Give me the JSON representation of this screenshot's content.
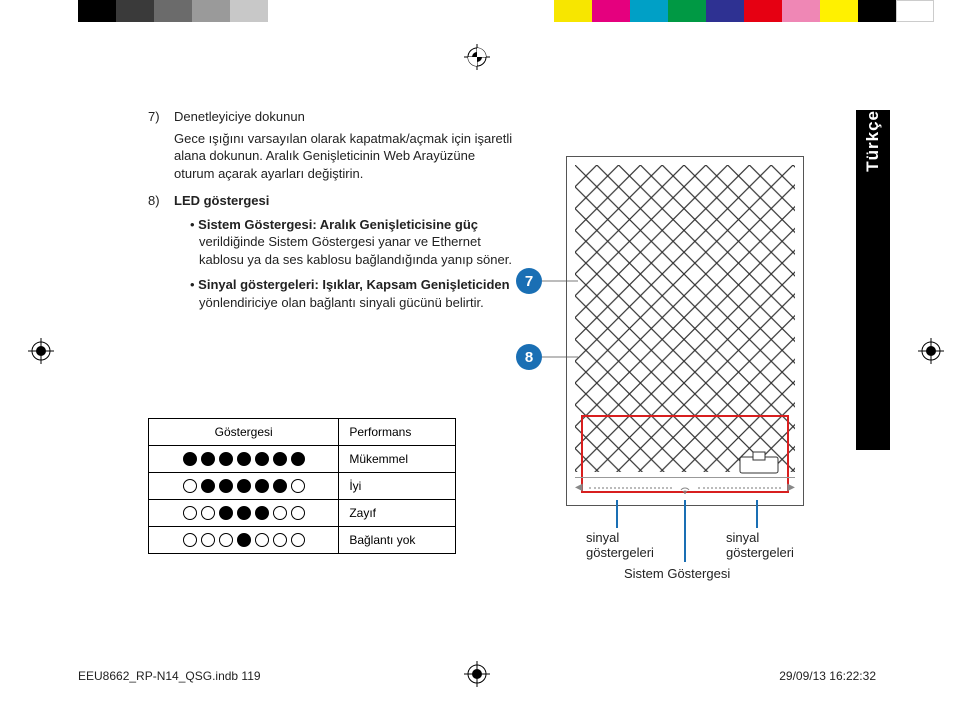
{
  "colorbar": {
    "left": [
      "#000000",
      "#3a3a3a",
      "#6b6b6b",
      "#9a9a9a",
      "#c8c8c8"
    ],
    "right": [
      "#f7e600",
      "#e5007e",
      "#00a0c6",
      "#009944",
      "#2e3192",
      "#e60012",
      "#ef87b5",
      "#fff100",
      "#000000",
      "#ffffff"
    ]
  },
  "language_tab": "Türkçe",
  "items": {
    "seven": {
      "num": "7)",
      "title": "Denetleyiciye dokunun",
      "desc": "Gece ışığını varsayılan olarak kapatmak/açmak için işaretli alana dokunun. Aralık Genişleticinin Web Arayüzüne oturum açarak ayarları değiştirin."
    },
    "eight": {
      "num": "8)",
      "title": "LED göstergesi",
      "b1_bold": "Sistem Göstergesi: Aralık Genişleticisine güç",
      "b1_rest": " verildiğinde Sistem Göstergesi yanar ve Ethernet kablosu ya da ses kablosu bağlandığında yanıp söner.",
      "b2_bold": "Sinyal göstergeleri: Işıklar, Kapsam Genişleticiden",
      "b2_rest": " yönlendiriciye olan bağlantı sinyali gücünü belirtir."
    }
  },
  "table": {
    "h1": "Göstergesi",
    "h2": "Performans",
    "rows": [
      {
        "pattern": [
          1,
          1,
          1,
          1,
          1,
          1,
          1
        ],
        "label": "Mükemmel"
      },
      {
        "pattern": [
          0,
          1,
          1,
          1,
          1,
          1,
          0
        ],
        "label": "İyi"
      },
      {
        "pattern": [
          0,
          0,
          1,
          1,
          1,
          0,
          0
        ],
        "label": "Zayıf"
      },
      {
        "pattern": [
          0,
          0,
          0,
          1,
          0,
          0,
          0
        ],
        "label": "Bağlantı yok"
      }
    ]
  },
  "callouts": {
    "seven": "7",
    "eight": "8"
  },
  "diagram_labels": {
    "left": "sinyal göstergeleri",
    "center": "Sistem Göstergesi",
    "right": "sinyal göstergeleri"
  },
  "footer": {
    "left": "EEU8662_RP-N14_QSG.indb   119",
    "right": "29/09/13   16:22:32"
  },
  "style": {
    "callout_bg": "#1a6fb4",
    "redbox": "#d81f1f"
  }
}
